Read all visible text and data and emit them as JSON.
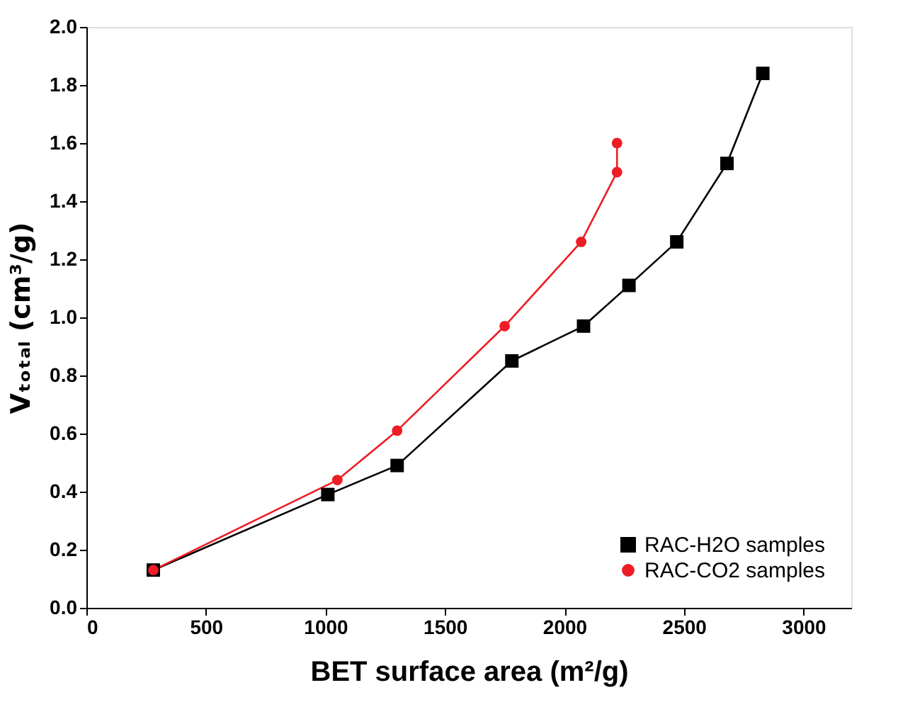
{
  "chart_data": {
    "type": "line",
    "xlabel": "BET surface area (m²/g)",
    "ylabel": "Vₜₒₜₐₗ (cm³/g)",
    "xlim": [
      0,
      3200
    ],
    "xticks": [
      0,
      500,
      1000,
      1500,
      2000,
      2500,
      3000
    ],
    "ylim": [
      0,
      2.0
    ],
    "yticks": [
      {
        "value": 0,
        "label": "0.0"
      },
      0.2,
      0.4,
      0.6,
      0.8,
      {
        "value": 1,
        "label": "1.0"
      },
      1.2,
      1.4,
      1.6,
      1.8,
      {
        "value": 2,
        "label": "2.0"
      }
    ],
    "grid": false,
    "legend": "bottom right",
    "line_style": "solid",
    "series": [
      {
        "name": "RAC-H2O samples",
        "color": "#000000",
        "marker": "square",
        "x": [
          280,
          1010,
          1300,
          1780,
          2080,
          2270,
          2470,
          2680,
          2830
        ],
        "values": [
          0.13,
          0.39,
          0.49,
          0.85,
          0.97,
          1.11,
          1.26,
          1.53,
          1.84
        ]
      },
      {
        "name": "RAC-CO2 samples",
        "color": "#ee1c24",
        "marker": "circle",
        "x": [
          280,
          1050,
          1300,
          1750,
          2070,
          2220,
          2220
        ],
        "values": [
          0.13,
          0.44,
          0.61,
          0.97,
          1.26,
          1.5,
          1.6
        ]
      }
    ]
  }
}
